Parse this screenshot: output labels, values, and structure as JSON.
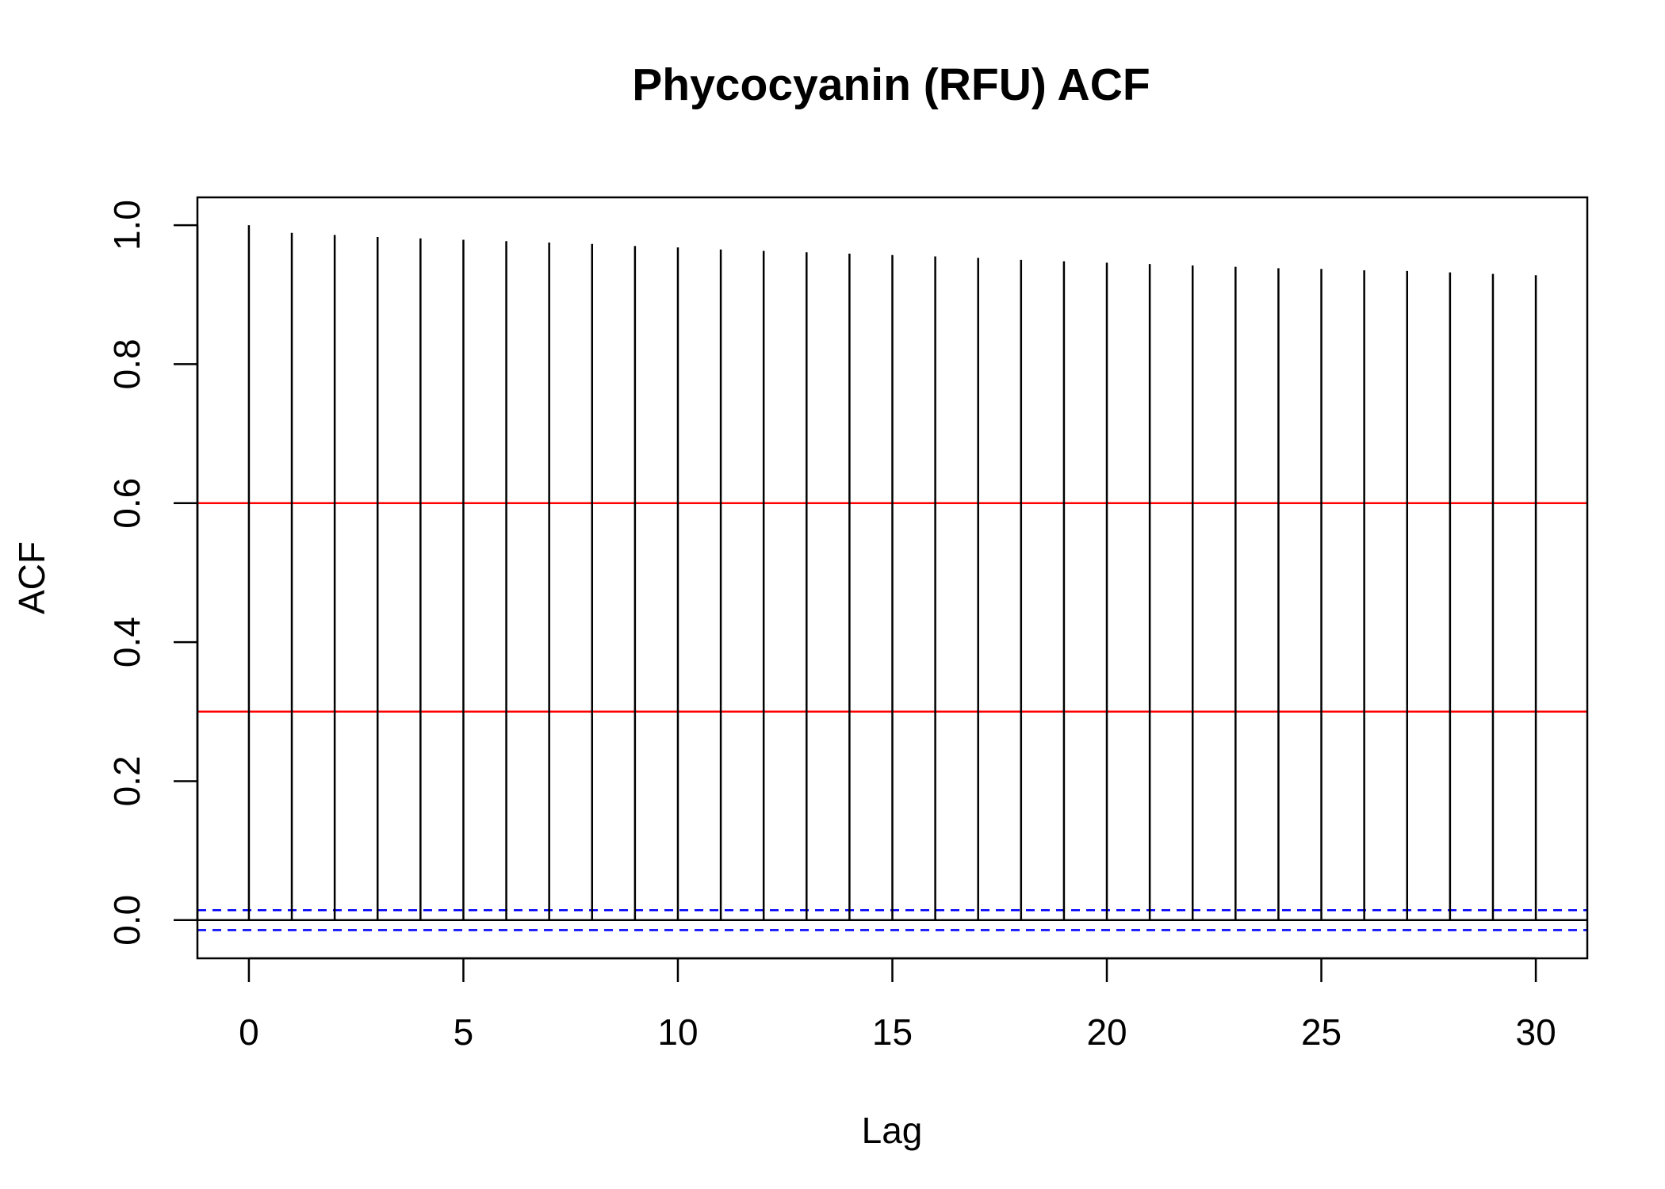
{
  "chart_data": {
    "type": "bar",
    "title": "Phycocyanin (RFU) ACF",
    "xlabel": "Lag",
    "ylabel": "ACF",
    "x": [
      0,
      1,
      2,
      3,
      4,
      5,
      6,
      7,
      8,
      9,
      10,
      11,
      12,
      13,
      14,
      15,
      16,
      17,
      18,
      19,
      20,
      21,
      22,
      23,
      24,
      25,
      26,
      27,
      28,
      29,
      30
    ],
    "values": [
      1.0,
      0.989,
      0.986,
      0.983,
      0.981,
      0.979,
      0.977,
      0.975,
      0.973,
      0.97,
      0.968,
      0.965,
      0.963,
      0.961,
      0.959,
      0.957,
      0.955,
      0.953,
      0.95,
      0.948,
      0.946,
      0.944,
      0.942,
      0.94,
      0.938,
      0.937,
      0.935,
      0.934,
      0.932,
      0.93,
      0.928
    ],
    "xlim": [
      -1.2,
      31.2
    ],
    "ylim": [
      -0.055,
      1.04
    ],
    "xticks": [
      0,
      5,
      10,
      15,
      20,
      25,
      30
    ],
    "yticks": [
      0.0,
      0.2,
      0.4,
      0.6,
      0.8,
      1.0
    ],
    "xtick_labels": [
      "0",
      "5",
      "10",
      "15",
      "20",
      "25",
      "30"
    ],
    "ytick_labels": [
      "0.0",
      "0.2",
      "0.4",
      "0.6",
      "0.8",
      "1.0"
    ],
    "reference_lines": [
      {
        "y": 0.6,
        "color": "#ff0000",
        "style": "solid"
      },
      {
        "y": 0.3,
        "color": "#ff0000",
        "style": "solid"
      },
      {
        "y": 0.0,
        "color": "#000000",
        "style": "solid"
      },
      {
        "y": 0.0143,
        "color": "#0000ff",
        "style": "dashed"
      },
      {
        "y": -0.0143,
        "color": "#0000ff",
        "style": "dashed"
      }
    ],
    "grid": false,
    "bar_color": "#000000"
  }
}
